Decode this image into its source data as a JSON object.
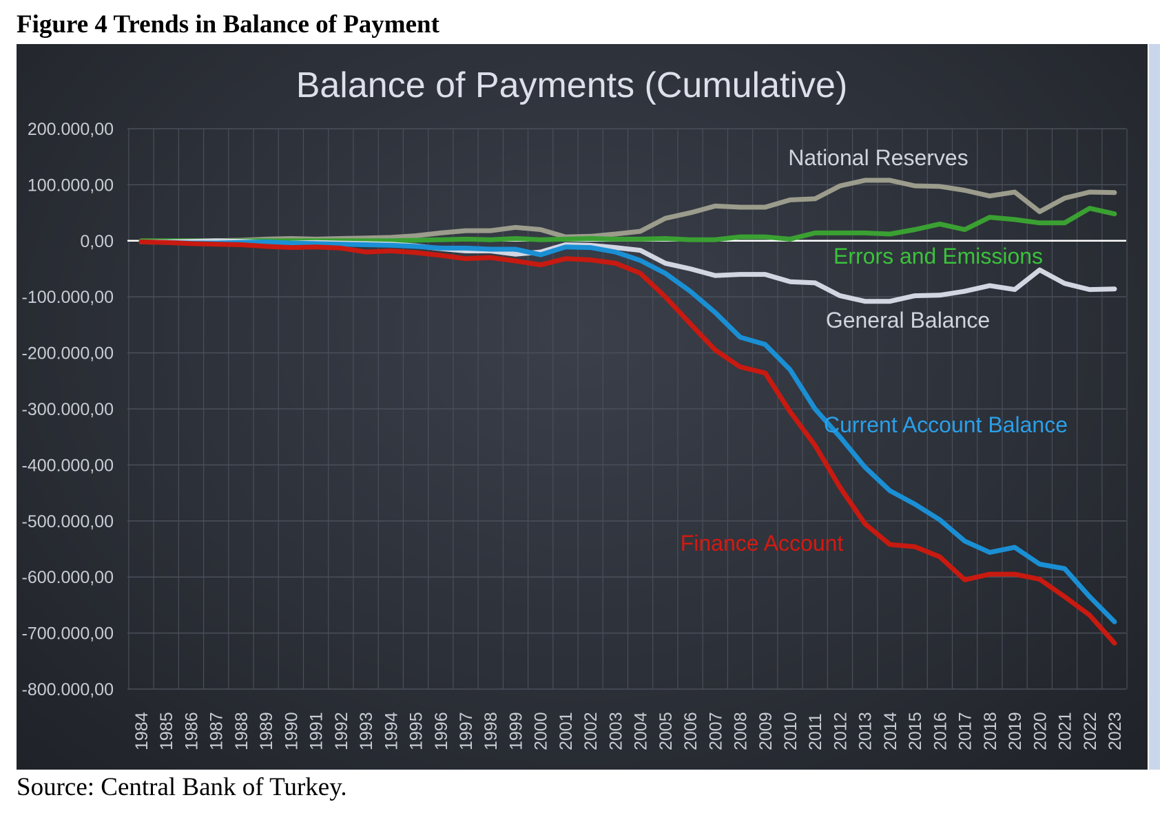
{
  "figure": {
    "title": "Figure 4 Trends in Balance of Payment",
    "source": "Source: Central Bank of Turkey."
  },
  "colors": {
    "background": "#2c3038",
    "grid": "#4a4f5a",
    "axis_text": "#c8ccd4",
    "zero_line": "#ffffff"
  },
  "chart_data": {
    "type": "line",
    "title": "Balance of Payments (Cumulative)",
    "xlabel": "",
    "ylabel": "",
    "ylim": [
      -800000,
      200000
    ],
    "yticks": [
      200000,
      100000,
      0,
      -100000,
      -200000,
      -300000,
      -400000,
      -500000,
      -600000,
      -700000,
      -800000
    ],
    "ytick_labels": [
      "200.000,00",
      "100.000,00",
      "0,00",
      "-100.000,00",
      "-200.000,00",
      "-300.000,00",
      "-400.000,00",
      "-500.000,00",
      "-600.000,00",
      "-700.000,00",
      "-800.000,00"
    ],
    "grid": true,
    "legend": "inline-labels",
    "x": [
      "1984",
      "1985",
      "1986",
      "1987",
      "1988",
      "1989",
      "1990",
      "1991",
      "1992",
      "1993",
      "1994",
      "1995",
      "1996",
      "1997",
      "1998",
      "1999",
      "2000",
      "2001",
      "2002",
      "2003",
      "2004",
      "2005",
      "2006",
      "2007",
      "2008",
      "2009",
      "2010",
      "2011",
      "2012",
      "2013",
      "2014",
      "2015",
      "2016",
      "2017",
      "2018",
      "2019",
      "2020",
      "2021",
      "2022",
      "2023"
    ],
    "series": [
      {
        "name": "National Reserves",
        "color": "#9c9c8c",
        "label_color": "#d0d4dc",
        "values": [
          -2000,
          -2000,
          -1000,
          0,
          1000,
          3000,
          4000,
          3000,
          4000,
          5000,
          6000,
          9000,
          14000,
          18000,
          18000,
          24000,
          20000,
          7000,
          8000,
          12000,
          17000,
          40000,
          50000,
          62000,
          60000,
          60000,
          73000,
          75000,
          98000,
          108000,
          108000,
          98000,
          97000,
          90000,
          80000,
          87000,
          52000,
          76000,
          87000,
          86000
        ]
      },
      {
        "name": "Errors and Emissions",
        "color": "#3aa032",
        "label_color": "#3bc23b",
        "values": [
          0,
          0,
          0,
          0,
          0,
          0,
          0,
          0,
          0,
          0,
          0,
          1000,
          2000,
          3000,
          2000,
          4000,
          2000,
          3000,
          4000,
          3000,
          3000,
          4000,
          2000,
          2000,
          7000,
          7000,
          3000,
          14000,
          14000,
          14000,
          12000,
          20000,
          30000,
          20000,
          42000,
          38000,
          32000,
          32000,
          58000,
          48000
        ]
      },
      {
        "name": "General Balance",
        "color": "#d2d6e2",
        "label_color": "#d0d4dc",
        "values": [
          -2000,
          -2000,
          -1000,
          0,
          -1000,
          -3000,
          -4000,
          -3000,
          -4000,
          -5000,
          -6000,
          -9000,
          -14000,
          -18000,
          -18000,
          -24000,
          -20000,
          -7000,
          -8000,
          -12000,
          -17000,
          -40000,
          -50000,
          -62000,
          -60000,
          -60000,
          -73000,
          -75000,
          -98000,
          -108000,
          -108000,
          -98000,
          -97000,
          -90000,
          -80000,
          -87000,
          -52000,
          -76000,
          -87000,
          -86000
        ]
      },
      {
        "name": "Current Account Balance",
        "color": "#1a8fd4",
        "label_color": "#2a9fe8",
        "values": [
          -2000,
          -3000,
          -4000,
          -4000,
          -3000,
          -2000,
          -4000,
          -5000,
          -6000,
          -7000,
          -8000,
          -10000,
          -13000,
          -13000,
          -15000,
          -15000,
          -25000,
          -11000,
          -12000,
          -20000,
          -35000,
          -58000,
          -90000,
          -128000,
          -172000,
          -185000,
          -230000,
          -300000,
          -350000,
          -404000,
          -446000,
          -470000,
          -498000,
          -536000,
          -556000,
          -547000,
          -577000,
          -585000,
          -635000,
          -680000
        ]
      },
      {
        "name": "Finance Account",
        "color": "#c81a10",
        "label_color": "#d41a10",
        "values": [
          -2000,
          -3000,
          -5000,
          -6000,
          -7000,
          -10000,
          -12000,
          -11000,
          -13000,
          -20000,
          -18000,
          -21000,
          -26000,
          -32000,
          -30000,
          -36000,
          -43000,
          -32000,
          -34000,
          -40000,
          -58000,
          -100000,
          -148000,
          -195000,
          -225000,
          -236000,
          -305000,
          -365000,
          -440000,
          -505000,
          -542000,
          -546000,
          -564000,
          -605000,
          -595000,
          -595000,
          -604000,
          -635000,
          -668000,
          -718000
        ]
      }
    ]
  }
}
